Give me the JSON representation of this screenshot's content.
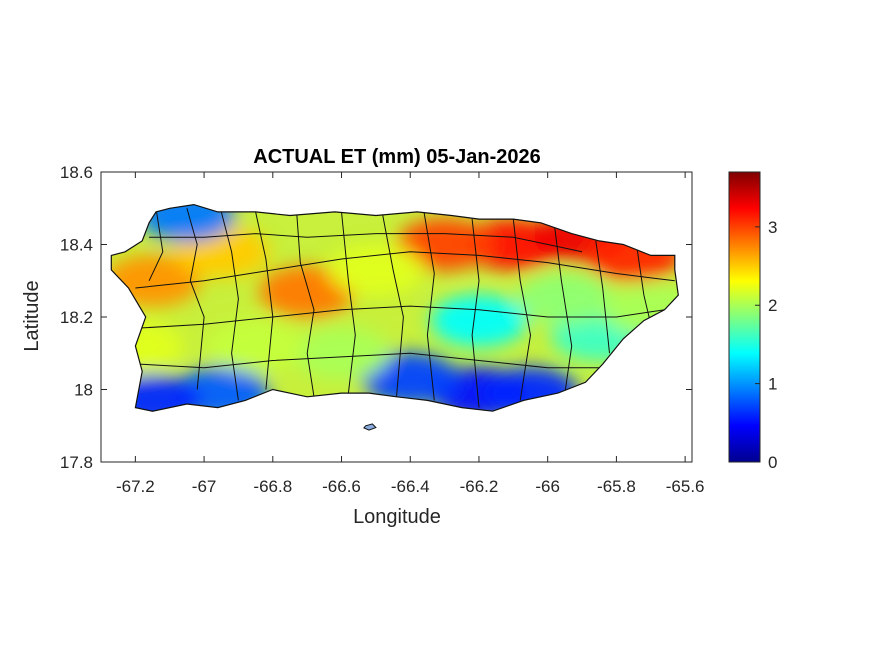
{
  "chart_data": {
    "type": "heatmap",
    "title": "ACTUAL ET (mm) 05-Jan-2026",
    "xlabel": "Longitude",
    "ylabel": "Latitude",
    "xlim": [
      -67.3,
      -65.58
    ],
    "ylim": [
      17.8,
      18.6
    ],
    "xticks": [
      -67.2,
      -67,
      -66.8,
      -66.6,
      -66.4,
      -66.2,
      -66,
      -65.8,
      -65.6
    ],
    "xtick_labels": [
      "-67.2",
      "-67",
      "-66.8",
      "-66.6",
      "-66.4",
      "-66.2",
      "-66",
      "-65.8",
      "-65.6"
    ],
    "yticks": [
      17.8,
      18,
      18.2,
      18.4,
      18.6
    ],
    "ytick_labels": [
      "17.8",
      "18",
      "18.2",
      "18.4",
      "18.6"
    ],
    "colorbar": {
      "colormap": "jet",
      "range": [
        0,
        3.7
      ],
      "ticks": [
        0,
        1,
        2,
        3
      ],
      "tick_labels": [
        "0",
        "1",
        "2",
        "3"
      ]
    },
    "grid": false,
    "region_hotspots": [
      {
        "lon": -66.1,
        "lat": 18.4,
        "value": 3.2
      },
      {
        "lon": -65.9,
        "lat": 18.42,
        "value": 3.3
      },
      {
        "lon": -66.3,
        "lat": 18.4,
        "value": 3.0
      },
      {
        "lon": -65.75,
        "lat": 18.37,
        "value": 3.1
      },
      {
        "lon": -66.7,
        "lat": 18.27,
        "value": 2.8
      },
      {
        "lon": -67.15,
        "lat": 18.3,
        "value": 2.7
      },
      {
        "lon": -66.95,
        "lat": 18.38,
        "value": 2.5
      },
      {
        "lon": -66.2,
        "lat": 17.99,
        "value": 0.5
      },
      {
        "lon": -66.4,
        "lat": 18.03,
        "value": 0.7
      },
      {
        "lon": -66.05,
        "lat": 17.99,
        "value": 0.6
      },
      {
        "lon": -66.95,
        "lat": 17.99,
        "value": 0.8
      },
      {
        "lon": -67.15,
        "lat": 17.97,
        "value": 0.6
      },
      {
        "lon": -67.05,
        "lat": 18.48,
        "value": 0.9
      },
      {
        "lon": -66.2,
        "lat": 18.19,
        "value": 1.4
      },
      {
        "lon": -65.85,
        "lat": 18.15,
        "value": 1.6
      },
      {
        "lon": -66.6,
        "lat": 18.1,
        "value": 2.0
      },
      {
        "lon": -66.5,
        "lat": 18.33,
        "value": 2.2
      },
      {
        "lon": -65.95,
        "lat": 18.25,
        "value": 1.9
      },
      {
        "lon": -66.85,
        "lat": 18.12,
        "value": 2.1
      },
      {
        "lon": -67.2,
        "lat": 18.12,
        "value": 2.2
      },
      {
        "lon": -65.7,
        "lat": 18.22,
        "value": 2.0
      }
    ]
  }
}
